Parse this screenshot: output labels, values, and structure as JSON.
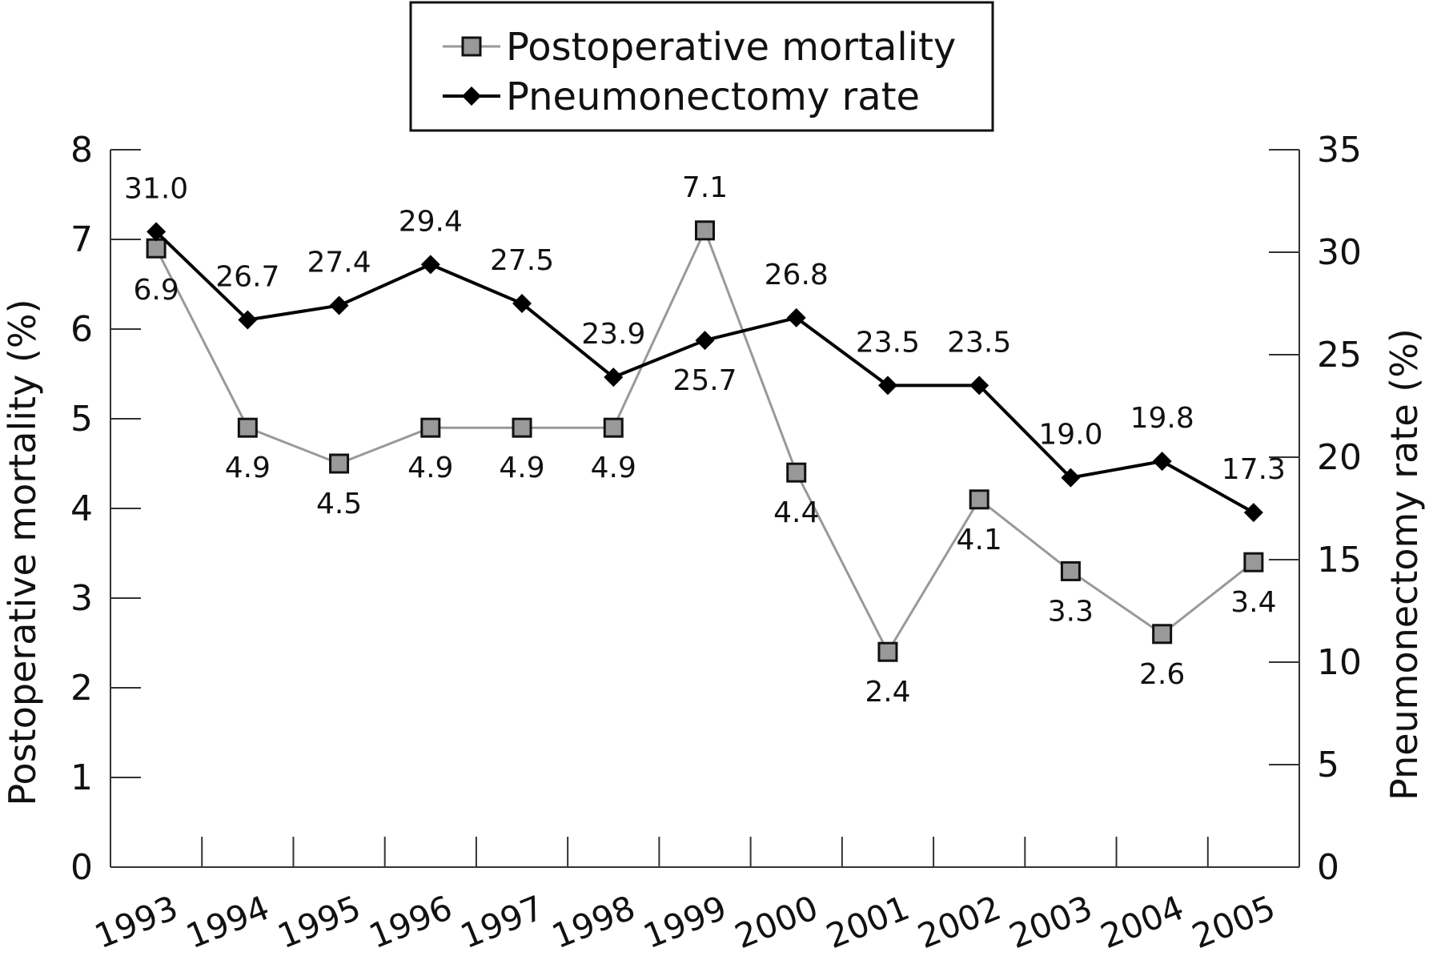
{
  "chart_data": {
    "type": "line",
    "categories": [
      "1993",
      "1994",
      "1995",
      "1996",
      "1997",
      "1998",
      "1999",
      "2000",
      "2001",
      "2002",
      "2003",
      "2004",
      "2005"
    ],
    "series": [
      {
        "name": "Postoperative mortality",
        "axis": "left",
        "color": "#999999",
        "marker": "square",
        "values": [
          6.9,
          4.9,
          4.5,
          4.9,
          4.9,
          4.9,
          7.1,
          4.4,
          2.4,
          4.1,
          3.3,
          2.6,
          3.4
        ],
        "labels": [
          "6.9",
          "4.9",
          "4.5",
          "4.9",
          "4.9",
          "4.9",
          "7.1",
          "4.4",
          "2.4",
          "4.1",
          "3.3",
          "2.6",
          "3.4"
        ]
      },
      {
        "name": "Pneumonectomy rate",
        "axis": "right",
        "color": "#000000",
        "marker": "diamond",
        "values": [
          31.0,
          26.7,
          27.4,
          29.4,
          27.5,
          23.9,
          25.7,
          26.8,
          23.5,
          23.5,
          19.0,
          19.8,
          17.3
        ],
        "labels": [
          "31.0",
          "26.7",
          "27.4",
          "29.4",
          "27.5",
          "23.9",
          "25.7",
          "26.8",
          "23.5",
          "23.5",
          "19.0",
          "19.8",
          "17.3"
        ]
      }
    ],
    "y_left": {
      "label": "Postoperative mortality (%)",
      "range": [
        0,
        8
      ],
      "ticks": [
        "0",
        "1",
        "2",
        "3",
        "4",
        "5",
        "6",
        "7",
        "8"
      ]
    },
    "y_right": {
      "label": "Pneumonectomy rate (%)",
      "range": [
        0,
        35
      ],
      "ticks": [
        "0",
        "5",
        "10",
        "15",
        "20",
        "25",
        "30",
        "35"
      ]
    },
    "grid": false,
    "legend_position": "top-center"
  }
}
